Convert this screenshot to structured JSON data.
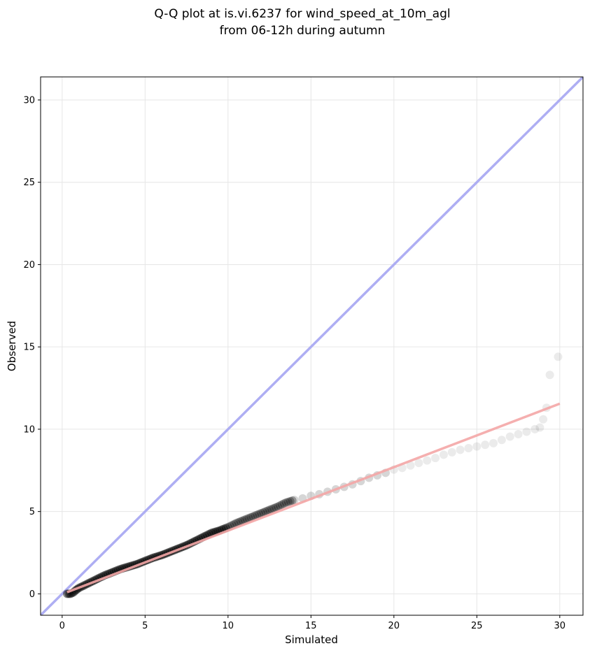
{
  "chart_data": {
    "type": "scatter",
    "title_line1": "Q-Q plot at is.vi.6237 for wind_speed_at_10m_agl",
    "title_line2": "from 06-12h during autumn",
    "xlabel": "Simulated",
    "ylabel": "Observed",
    "xlim": [
      -1.3,
      31.4
    ],
    "ylim": [
      -1.3,
      31.4
    ],
    "xticks": [
      "0",
      "5",
      "10",
      "15",
      "20",
      "25",
      "30"
    ],
    "yticks": [
      "0",
      "5",
      "10",
      "15",
      "20",
      "25",
      "30"
    ],
    "grid": true,
    "colors": {
      "points": "#000000",
      "identity_line": "#aaaaf2",
      "fit_line": "#f4a6a6",
      "grid": "#e6e6e6"
    },
    "identity_line": {
      "x": [
        -1.3,
        31.4
      ],
      "y": [
        -1.3,
        31.4
      ]
    },
    "fit_line": {
      "x": [
        0.3,
        30.0
      ],
      "y": [
        0.1,
        11.55
      ]
    },
    "quantiles": {
      "x": [
        0.3,
        0.4,
        0.5,
        0.6,
        0.7,
        0.8,
        1.0,
        1.5,
        2.0,
        2.5,
        3.0,
        3.5,
        4.0,
        4.5,
        5.0,
        5.5,
        6.0,
        6.5,
        7.0,
        7.5,
        8.0,
        8.5,
        9.0,
        9.5,
        10.0,
        10.5,
        11.0,
        11.5,
        12.0,
        12.5,
        13.0,
        13.5,
        14.0,
        14.5,
        15.0,
        15.5,
        16.0,
        16.5,
        17.0,
        17.5,
        18.0,
        18.5,
        19.0,
        19.5,
        20.0,
        20.5,
        21.0,
        21.5,
        22.0,
        22.5,
        23.0,
        23.5,
        24.0,
        24.5,
        25.0,
        25.5,
        26.0,
        26.5,
        27.0,
        27.5,
        28.0,
        28.5,
        28.8,
        29.0,
        29.2,
        29.4,
        29.9
      ],
      "y": [
        0.0,
        0.0,
        0.0,
        0.05,
        0.1,
        0.2,
        0.35,
        0.6,
        0.85,
        1.1,
        1.3,
        1.5,
        1.65,
        1.8,
        2.0,
        2.2,
        2.35,
        2.55,
        2.75,
        2.95,
        3.2,
        3.45,
        3.7,
        3.85,
        4.05,
        4.3,
        4.5,
        4.7,
        4.9,
        5.1,
        5.3,
        5.55,
        5.7,
        5.8,
        5.95,
        6.05,
        6.2,
        6.35,
        6.5,
        6.65,
        6.85,
        7.05,
        7.2,
        7.35,
        7.55,
        7.65,
        7.8,
        7.95,
        8.1,
        8.25,
        8.45,
        8.6,
        8.75,
        8.85,
        8.95,
        9.05,
        9.15,
        9.35,
        9.55,
        9.7,
        9.85,
        10.0,
        10.1,
        10.6,
        11.3,
        13.3,
        14.4
      ]
    }
  }
}
